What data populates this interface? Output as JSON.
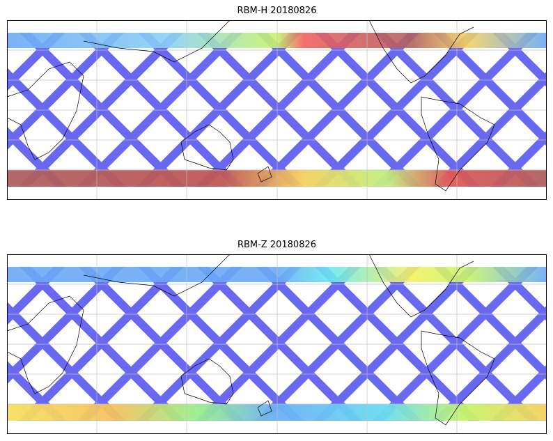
{
  "panels": [
    {
      "title": "RBM-H 20180826",
      "north_colors": [
        "#6aaaf5",
        "#c8f56a",
        "#f06060",
        "#b06060"
      ],
      "south_colors": [
        "#f0a050",
        "#e05858",
        "#b06060"
      ]
    },
    {
      "title": "RBM-Z 20180826",
      "north_colors": [
        "#6aaaf5",
        "#6ae8f0",
        "#f5f060"
      ],
      "south_colors": [
        "#f5e060",
        "#9af08a",
        "#6adcf0"
      ]
    }
  ],
  "colors": {
    "swath": "#6868f0",
    "grid": "#c0c0c0",
    "coast": "#000000"
  }
}
